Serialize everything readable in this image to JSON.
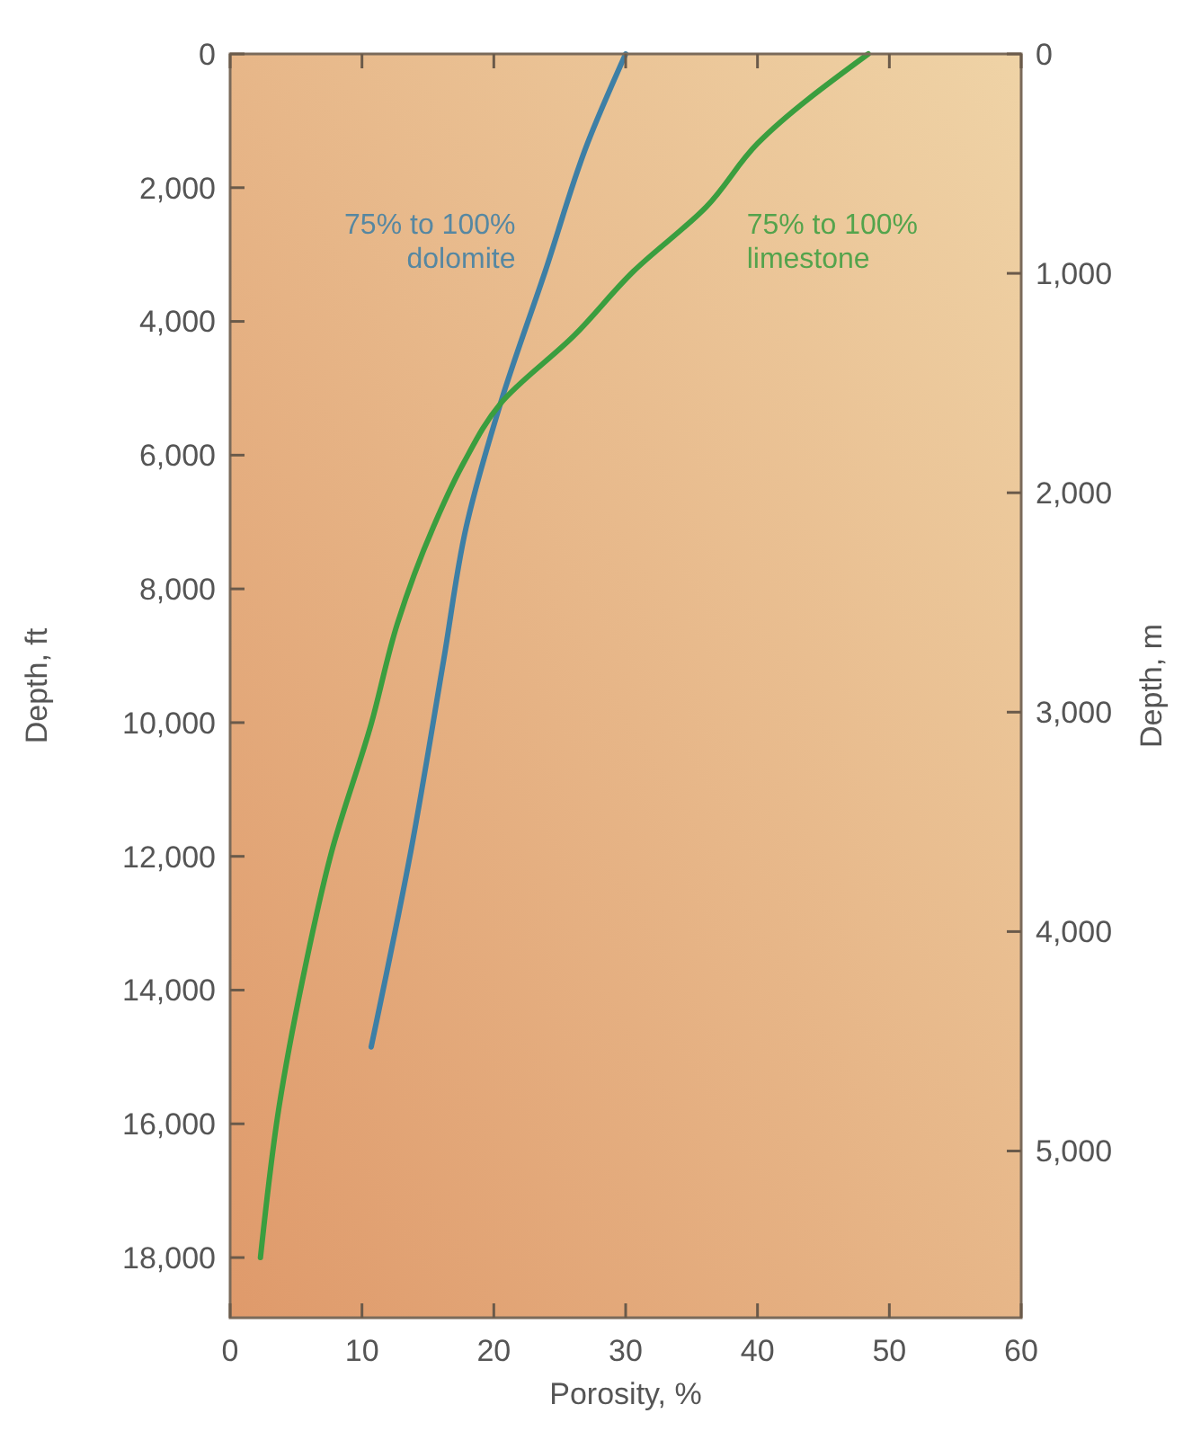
{
  "chart_data": {
    "type": "line",
    "xlabel": "Porosity, %",
    "ylabel": "Depth, ft",
    "y2label": "Depth, m",
    "xlim": [
      0,
      60
    ],
    "xticks": [
      0,
      10,
      20,
      30,
      40,
      50,
      60
    ],
    "ylim": [
      18900,
      0
    ],
    "yticks": [
      0,
      {
        "value": 2000,
        "label": "2,000"
      },
      {
        "value": 4000,
        "label": "4,000"
      },
      {
        "value": 6000,
        "label": "6,000"
      },
      {
        "value": 8000,
        "label": "8,000"
      },
      {
        "value": 10000,
        "label": "10,000"
      },
      {
        "value": 12000,
        "label": "12,000"
      },
      {
        "value": 14000,
        "label": "14,000"
      },
      {
        "value": 16000,
        "label": "16,000"
      },
      {
        "value": 18000,
        "label": "18,000"
      }
    ],
    "y2lim": [
      5760,
      0
    ],
    "y2ticks": [
      0,
      {
        "value": 1000,
        "label": "1,000"
      },
      {
        "value": 2000,
        "label": "2,000"
      },
      {
        "value": 3000,
        "label": "3,000"
      },
      {
        "value": 4000,
        "label": "4,000"
      },
      {
        "value": 5000,
        "label": "5,000"
      }
    ],
    "marker": "none",
    "line_style": "solid",
    "series": [
      {
        "name": "75% to 100% dolomite",
        "color": "#3d7fa6",
        "x": [
          30.0,
          27.1,
          23.9,
          20.5,
          17.9,
          16.2,
          13.7,
          10.7
        ],
        "values": [
          0,
          1340,
          3250,
          5230,
          7080,
          9060,
          11930,
          14850
        ]
      },
      {
        "name": "75% to 100% limestone",
        "color": "#3a9e3f",
        "x": [
          48.4,
          40.0,
          36.1,
          30.6,
          26.1,
          20.5,
          17.7,
          15.4,
          12.7,
          10.7,
          7.7,
          5.5,
          3.7,
          2.3
        ],
        "values": [
          0,
          1340,
          2290,
          3250,
          4210,
          5230,
          6120,
          7080,
          8510,
          10020,
          11930,
          13840,
          15760,
          18000
        ]
      }
    ]
  }
}
